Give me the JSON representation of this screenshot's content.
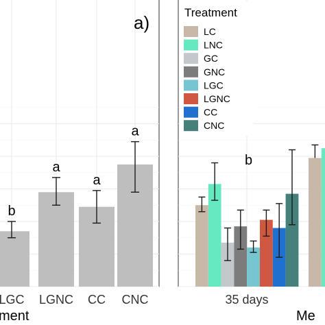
{
  "chart_data": [
    {
      "type": "bar",
      "panel_label": "a)",
      "categories": [
        "LGC",
        "LGNC",
        "CC",
        "CNC"
      ],
      "values": [
        1.7,
        2.9,
        2.45,
        3.75
      ],
      "error_low": [
        1.5,
        2.5,
        1.95,
        2.9
      ],
      "error_high": [
        2.0,
        3.35,
        2.95,
        4.45
      ],
      "significance": [
        "b",
        "a",
        "a",
        "a"
      ],
      "bar_color": "#bebebe",
      "xlabel": "ment",
      "ylim": [
        0,
        5.5
      ],
      "grid": true
    },
    {
      "type": "bar",
      "categories": [
        "35 days"
      ],
      "xlabel": "Me",
      "ylim": [
        0,
        5.5
      ],
      "grid": true,
      "legend": {
        "title": "Treatment",
        "placement": "top-left",
        "entries": [
          "LC",
          "LNC",
          "GC",
          "GNC",
          "LGC",
          "LGNC",
          "CC",
          "CNC"
        ]
      },
      "group_label": "b",
      "series": [
        {
          "name": "LC",
          "color": "#c8b8a8",
          "value": 2.5,
          "err_low": 2.3,
          "err_high": 2.75
        },
        {
          "name": "LNC",
          "color": "#66e8c0",
          "value": 3.15,
          "err_low": 2.65,
          "err_high": 3.8
        },
        {
          "name": "GC",
          "color": "#c2c8cc",
          "value": 1.35,
          "err_low": 0.8,
          "err_high": 1.8
        },
        {
          "name": "GNC",
          "color": "#7c7c7c",
          "value": 1.85,
          "err_low": 1.15,
          "err_high": 2.35
        },
        {
          "name": "LGC",
          "color": "#78c5d2",
          "value": 1.2,
          "err_low": 1.05,
          "err_high": 1.4
        },
        {
          "name": "LGNC",
          "color": "#d05840",
          "value": 2.05,
          "err_low": 1.55,
          "err_high": 2.35
        },
        {
          "name": "CC",
          "color": "#2070d0",
          "value": 1.8,
          "err_low": 0.9,
          "err_high": 2.55
        },
        {
          "name": "CNC",
          "color": "#45807a",
          "value": 2.85,
          "err_low": 1.9,
          "err_high": 4.2
        }
      ],
      "next_group_partial": [
        {
          "name": "LC",
          "color": "#c8b8a8",
          "value": 3.95,
          "err_high": 4.35
        },
        {
          "name": "LNC",
          "color": "#66e8c0",
          "value": 4.25
        }
      ]
    }
  ]
}
